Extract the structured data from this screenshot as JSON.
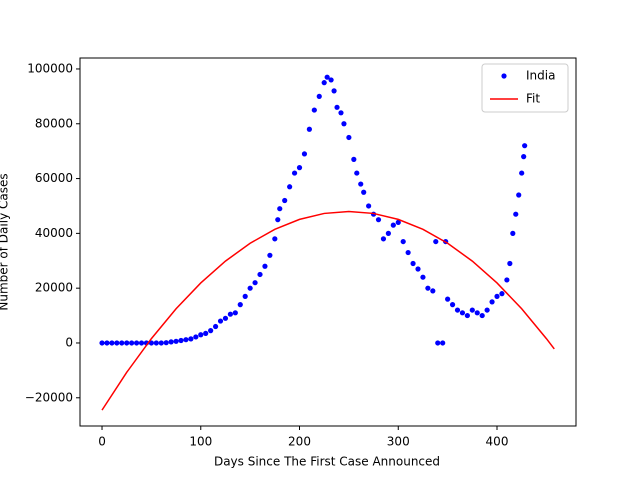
{
  "chart_data": {
    "type": "scatter",
    "xlabel": "Days Since The First Case Announced",
    "ylabel": "Number of Daily Cases",
    "xlim": [
      -22.3,
      480
    ],
    "ylim": [
      -30300,
      104000
    ],
    "xticks": [
      0,
      100,
      200,
      300,
      400
    ],
    "yticks": [
      {
        "value": -20000,
        "label": "−20000"
      },
      0,
      20000,
      40000,
      60000,
      80000,
      100000
    ],
    "legend": "upper right",
    "series": [
      {
        "name": "India",
        "color": "#0000ff",
        "style": "points",
        "x": [
          0,
          5,
          10,
          15,
          20,
          25,
          30,
          35,
          40,
          45,
          50,
          55,
          60,
          65,
          70,
          75,
          80,
          85,
          90,
          95,
          100,
          105,
          110,
          115,
          120,
          125,
          130,
          135,
          140,
          145,
          150,
          155,
          160,
          165,
          170,
          175,
          178,
          180,
          185,
          190,
          195,
          200,
          205,
          210,
          215,
          220,
          225,
          228,
          232,
          235,
          238,
          242,
          245,
          250,
          255,
          258,
          262,
          265,
          270,
          275,
          280,
          285,
          290,
          295,
          300,
          305,
          310,
          315,
          320,
          325,
          330,
          335,
          338,
          340,
          345,
          348,
          350,
          355,
          360,
          365,
          370,
          375,
          380,
          385,
          390,
          395,
          400,
          405,
          410,
          413,
          416,
          419,
          422,
          425,
          427,
          428
        ],
        "values": [
          0,
          0,
          0,
          0,
          0,
          0,
          0,
          0,
          0,
          0,
          0,
          0,
          0,
          100,
          400,
          600,
          900,
          1200,
          1500,
          2200,
          3000,
          3500,
          4500,
          6000,
          8000,
          9000,
          10500,
          11000,
          14000,
          17000,
          20000,
          22000,
          25000,
          28000,
          32000,
          38000,
          45000,
          49000,
          52000,
          57000,
          62000,
          64000,
          69000,
          78000,
          85000,
          90000,
          95000,
          97000,
          96000,
          92000,
          86000,
          84000,
          80000,
          75000,
          67000,
          62000,
          58000,
          55000,
          50000,
          47000,
          45000,
          38000,
          40000,
          43000,
          44000,
          37000,
          33000,
          29000,
          27000,
          24000,
          20000,
          19000,
          37000,
          0,
          0,
          37000,
          16000,
          14000,
          12000,
          11000,
          10000,
          12000,
          11000,
          10000,
          12000,
          15000,
          17000,
          18000,
          23000,
          29000,
          40000,
          47000,
          54000,
          62000,
          68000,
          72000
        ]
      },
      {
        "name": "Fit",
        "color": "#ff0000",
        "style": "line",
        "x": [
          0,
          25,
          50,
          75,
          100,
          125,
          150,
          175,
          200,
          225,
          250,
          275,
          300,
          325,
          350,
          375,
          400,
          425,
          450,
          458
        ],
        "values": [
          -24500,
          -10725,
          1600,
          12475,
          21900,
          29875,
          36400,
          41475,
          45100,
          47275,
          48000,
          47275,
          45100,
          41475,
          36400,
          29875,
          21900,
          12475,
          1600,
          -2186
        ]
      }
    ]
  }
}
